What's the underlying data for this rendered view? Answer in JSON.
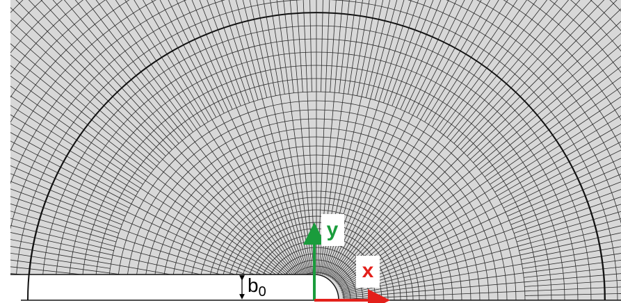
{
  "labels": {
    "y": "y",
    "x": "x",
    "b": "b",
    "b_subscript": "0"
  }
}
